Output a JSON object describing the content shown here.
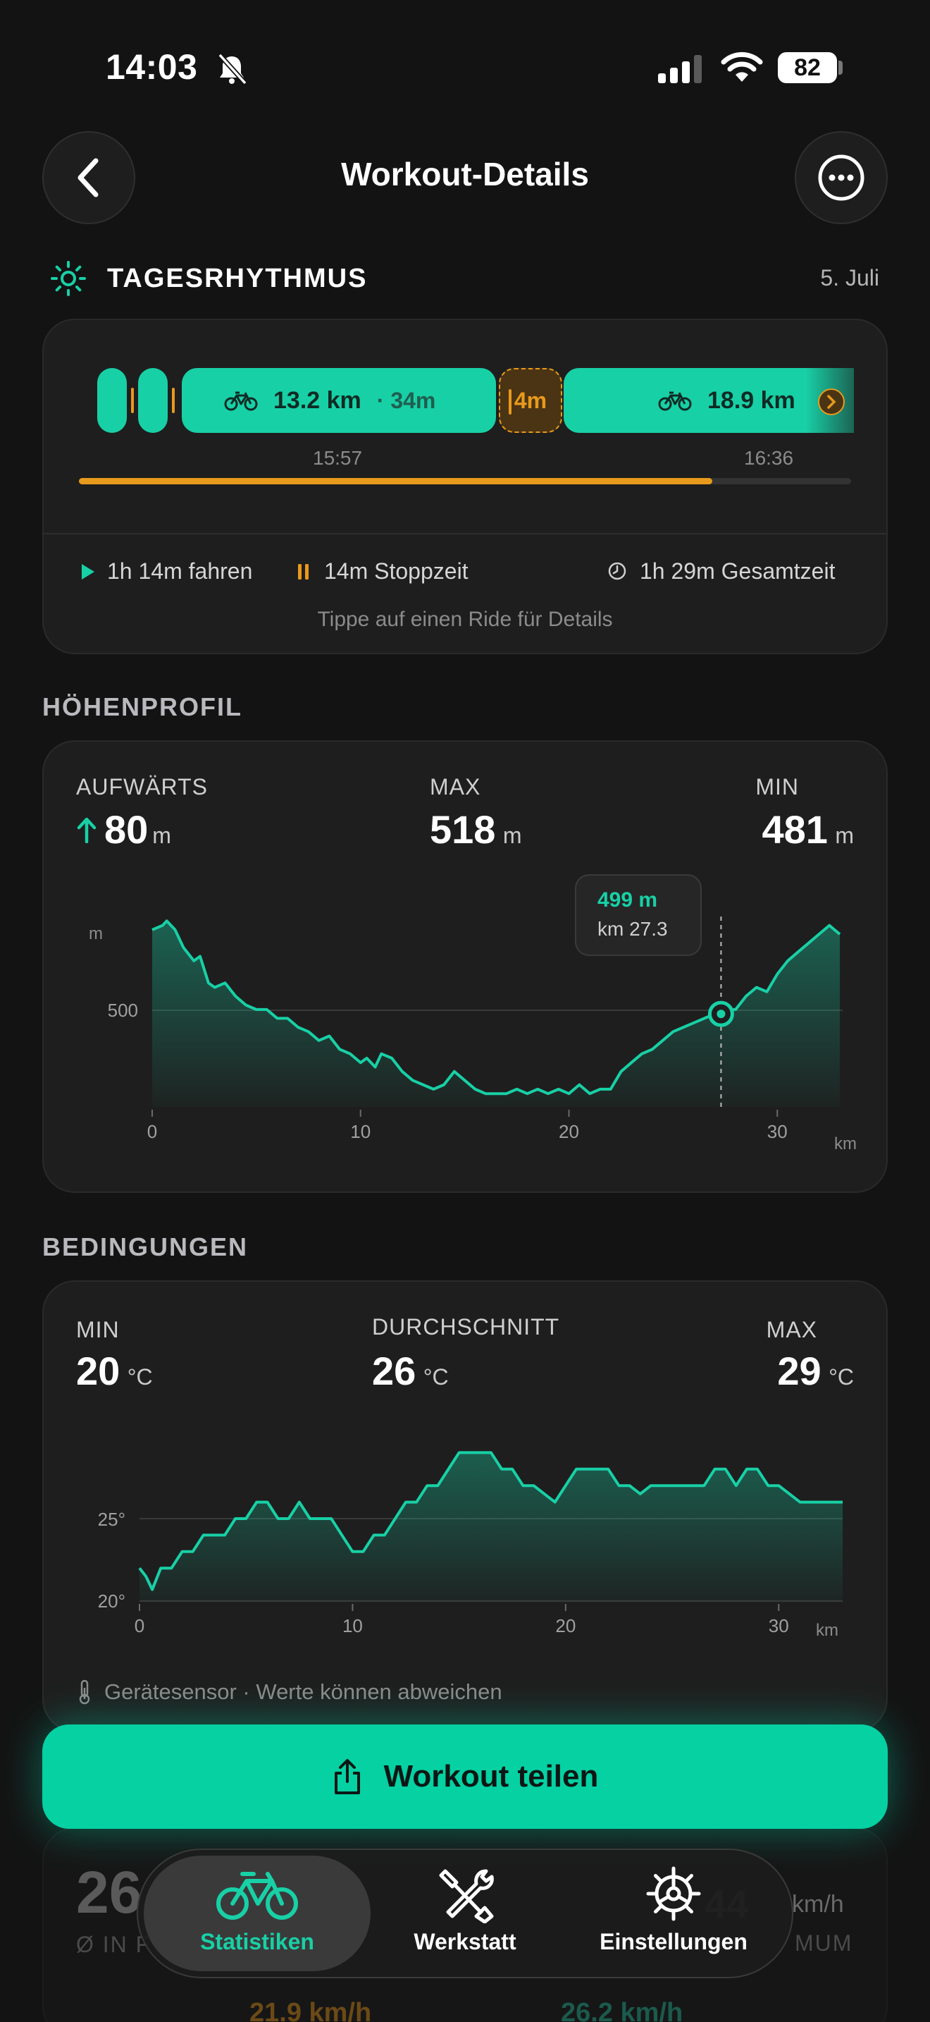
{
  "status_bar": {
    "time": "14:03",
    "battery": "82"
  },
  "header": {
    "title": "Workout-Details"
  },
  "rhythm": {
    "title": "TAGESRHYTHMUS",
    "date": "5. Juli",
    "seg1_distance": "13.2 km",
    "seg1_duration": "· 34m",
    "stop_duration": "4m",
    "seg2_distance": "18.9 km",
    "time_start": "15:57",
    "time_end": "16:36",
    "progress": 0.82,
    "ride_time": "1h 14m fahren",
    "stop_time": "14m Stoppzeit",
    "total_time": "1h 29m Gesamtzeit",
    "hint": "Tippe auf einen Ride für Details"
  },
  "elevation": {
    "section_title": "HÖHENPROFIL",
    "up_label": "AUFWÄRTS",
    "up_value": "80",
    "up_unit": "m",
    "max_label": "MAX",
    "max_value": "518",
    "max_unit": "m",
    "min_label": "MIN",
    "min_value": "481",
    "min_unit": "m",
    "y_unit": "m",
    "y_tick": "500",
    "x_ticks": [
      "0",
      "10",
      "20",
      "30"
    ],
    "x_unit": "km",
    "tooltip_value": "499 m",
    "tooltip_km": "km 27.3"
  },
  "conditions": {
    "section_title": "BEDINGUNGEN",
    "min_label": "MIN",
    "min_value": "20",
    "min_unit": "°C",
    "avg_label": "DURCHSCHNITT",
    "avg_value": "26",
    "avg_unit": "°C",
    "max_label": "MAX",
    "max_value": "29",
    "max_unit": "°C",
    "y_ticks": [
      "25°",
      "20°"
    ],
    "x_ticks": [
      "0",
      "10",
      "20",
      "30"
    ],
    "x_unit": "km",
    "sensor_note": "Gerätesensor · Werte können abweichen"
  },
  "behind": {
    "left_value": "26",
    "left_label": "Ø IN F",
    "right_value": "44",
    "right_unit": "km/h",
    "right_label": "MUM",
    "bottom_left": "21.9 km/h",
    "bottom_right": "26.2 km/h"
  },
  "share_button": {
    "label": "Workout teilen"
  },
  "tabbar": {
    "tabs": [
      {
        "label": "Statistiken",
        "icon": "bike-icon"
      },
      {
        "label": "Werkstatt",
        "icon": "tools-icon"
      },
      {
        "label": "Einstellungen",
        "icon": "gear-icon"
      }
    ]
  },
  "colors": {
    "accent": "#18d0a6",
    "stop": "#e89a1c",
    "background": "#131313",
    "card": "#1e1e1e"
  },
  "chart_data": [
    {
      "type": "area",
      "title": "HÖHENPROFIL",
      "xlabel": "km",
      "ylabel": "m",
      "xlim": [
        0,
        33
      ],
      "ylim": [
        478,
        521
      ],
      "x": [
        0,
        0.5,
        0.7,
        1.1,
        1.5,
        2,
        2.3,
        2.7,
        3,
        3.5,
        4,
        4.5,
        5,
        5.5,
        6,
        6.5,
        7,
        7.5,
        8,
        8.5,
        9,
        9.5,
        10,
        10.3,
        10.7,
        11,
        11.5,
        12,
        12.5,
        13,
        13.5,
        14,
        14.5,
        15,
        15.5,
        16,
        16.5,
        17,
        17.5,
        18,
        18.5,
        19,
        19.5,
        20,
        20.5,
        21,
        21.5,
        22,
        22.5,
        23,
        23.5,
        24,
        24.5,
        25,
        25.5,
        26,
        26.5,
        27,
        27.3,
        27.6,
        28,
        28.5,
        29,
        29.5,
        30,
        30.5,
        31,
        31.5,
        32,
        32.5,
        33
      ],
      "y": [
        518,
        519,
        520,
        518,
        514,
        511,
        512,
        506,
        505,
        506,
        503,
        501,
        500,
        500,
        498,
        498,
        496,
        495,
        493,
        494,
        491,
        490,
        488,
        489,
        487,
        490,
        489,
        486,
        484,
        483,
        482,
        483,
        486,
        484,
        482,
        481,
        481,
        481,
        482,
        481,
        482,
        481,
        482,
        481,
        483,
        481,
        482,
        482,
        486,
        488,
        490,
        491,
        493,
        495,
        496,
        497,
        498,
        499,
        499,
        500,
        500,
        503,
        505,
        504,
        508,
        511,
        513,
        515,
        517,
        519,
        517
      ],
      "annotations": [
        {
          "x": 27.3,
          "y": 499,
          "text": "499 m · km 27.3"
        }
      ]
    },
    {
      "type": "area",
      "title": "BEDINGUNGEN",
      "xlabel": "km",
      "xlim": [
        0,
        33
      ],
      "ylim": [
        20,
        30
      ],
      "x": [
        0,
        0.3,
        0.6,
        1,
        1.5,
        2,
        2.5,
        3,
        3.5,
        4,
        4.5,
        5,
        5.5,
        6,
        6.5,
        7,
        7.5,
        8,
        8.5,
        9,
        9.5,
        10,
        10.5,
        11,
        11.5,
        12,
        12.5,
        13,
        13.5,
        14,
        15,
        16,
        16.5,
        17,
        17.5,
        18,
        18.5,
        19,
        19.5,
        20,
        20.5,
        21,
        21.5,
        22,
        22.5,
        23,
        23.5,
        24,
        25,
        26,
        26.5,
        27,
        27.5,
        28,
        28.5,
        29,
        29.5,
        30,
        31,
        32,
        33
      ],
      "y": [
        22,
        21.5,
        20.7,
        22,
        22,
        23,
        23,
        24,
        24,
        24,
        25,
        25,
        26,
        26,
        25,
        25,
        26,
        25,
        25,
        25,
        24,
        23,
        23,
        24,
        24,
        25,
        26,
        26,
        27,
        27,
        29,
        29,
        29,
        28,
        28,
        27,
        27,
        26.5,
        26,
        27,
        28,
        28,
        28,
        28,
        27,
        27,
        26.5,
        27,
        27,
        27,
        27,
        28,
        28,
        27,
        28,
        28,
        27,
        27,
        26,
        26,
        26
      ]
    }
  ]
}
